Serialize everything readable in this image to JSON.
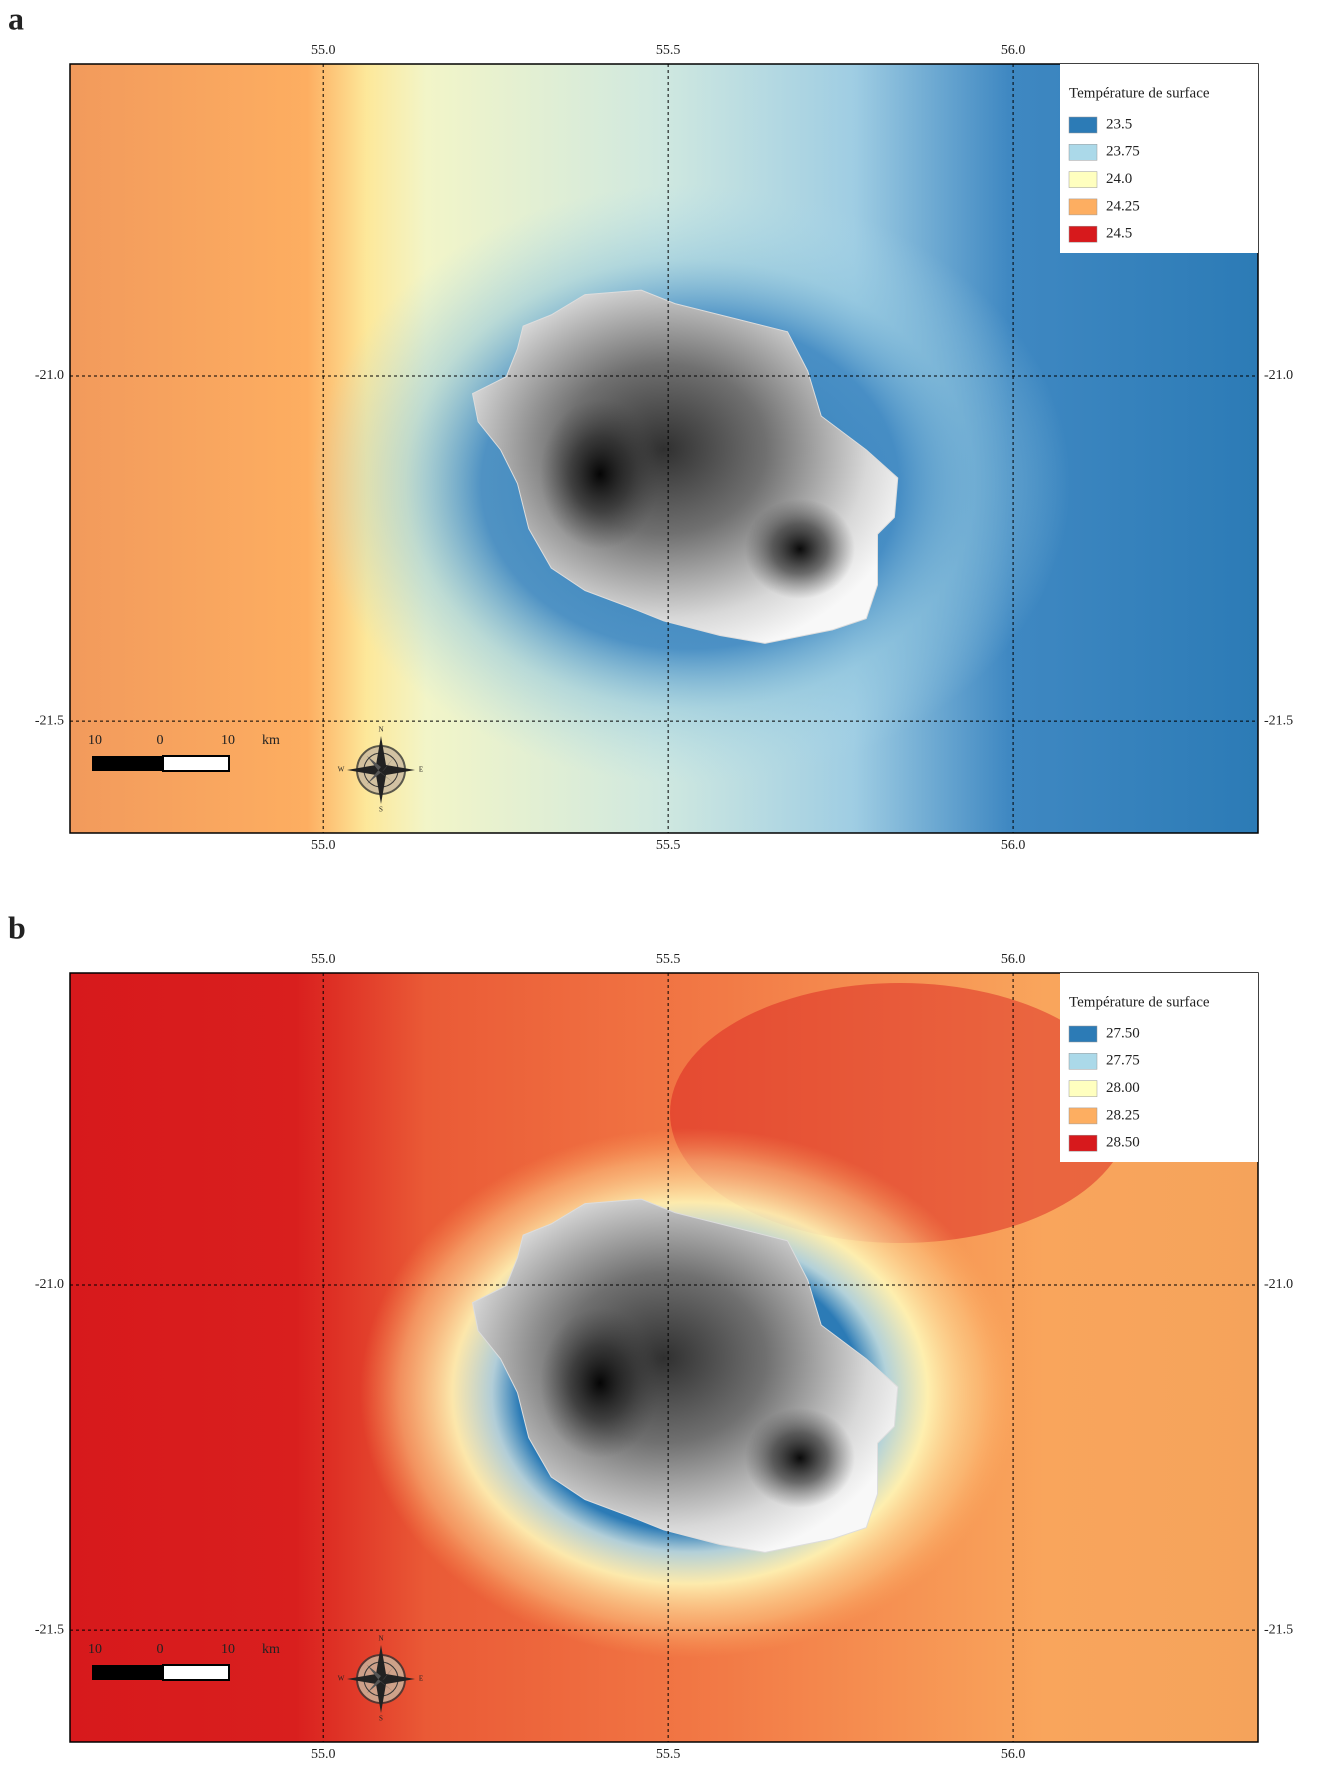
{
  "panels": [
    {
      "label": "a",
      "lon_ticks": [
        {
          "value": 55,
          "label": "55.0"
        },
        55.5,
        {
          "value": 56,
          "label": "56.0"
        }
      ],
      "lat_ticks": [
        {
          "value": -21,
          "label": "-21.0"
        },
        -21.5
      ],
      "xlim": [
        54.633,
        56.355
      ],
      "ylim": [
        -21.662,
        -20.548
      ],
      "legend": {
        "title": "Température de surface",
        "items": [
          {
            "label": "23.5",
            "color": "#2c7bb6"
          },
          {
            "label": "23.75",
            "color": "#abd9e9"
          },
          {
            "label": "24.0",
            "color": "#ffffbf"
          },
          {
            "label": "24.25",
            "color": "#fdae61"
          },
          {
            "label": "24.5",
            "color": "#d7191c"
          }
        ]
      },
      "scale_bar": [
        "10",
        "0",
        "10",
        "km"
      ],
      "compass": [
        "N",
        "E",
        "S",
        "W"
      ]
    },
    {
      "label": "b",
      "lon_ticks": [
        {
          "value": 55,
          "label": "55.0"
        },
        55.5,
        {
          "value": 56,
          "label": "56.0"
        }
      ],
      "lat_ticks": [
        {
          "value": -21,
          "label": "-21.0"
        },
        -21.5
      ],
      "xlim": [
        54.633,
        56.355
      ],
      "ylim": [
        -21.662,
        -20.548
      ],
      "legend": {
        "title": "Température de surface",
        "items": [
          {
            "label": "27.50",
            "color": "#2c7bb6"
          },
          {
            "label": "27.75",
            "color": "#abd9e9"
          },
          {
            "label": "28.00",
            "color": "#ffffbf"
          },
          {
            "label": "28.25",
            "color": "#fdae61"
          },
          {
            "label": "28.50",
            "color": "#d7191c"
          }
        ]
      },
      "scale_bar": [
        "10",
        "0",
        "10",
        "km"
      ],
      "compass": [
        "N",
        "E",
        "S",
        "W"
      ]
    }
  ]
}
